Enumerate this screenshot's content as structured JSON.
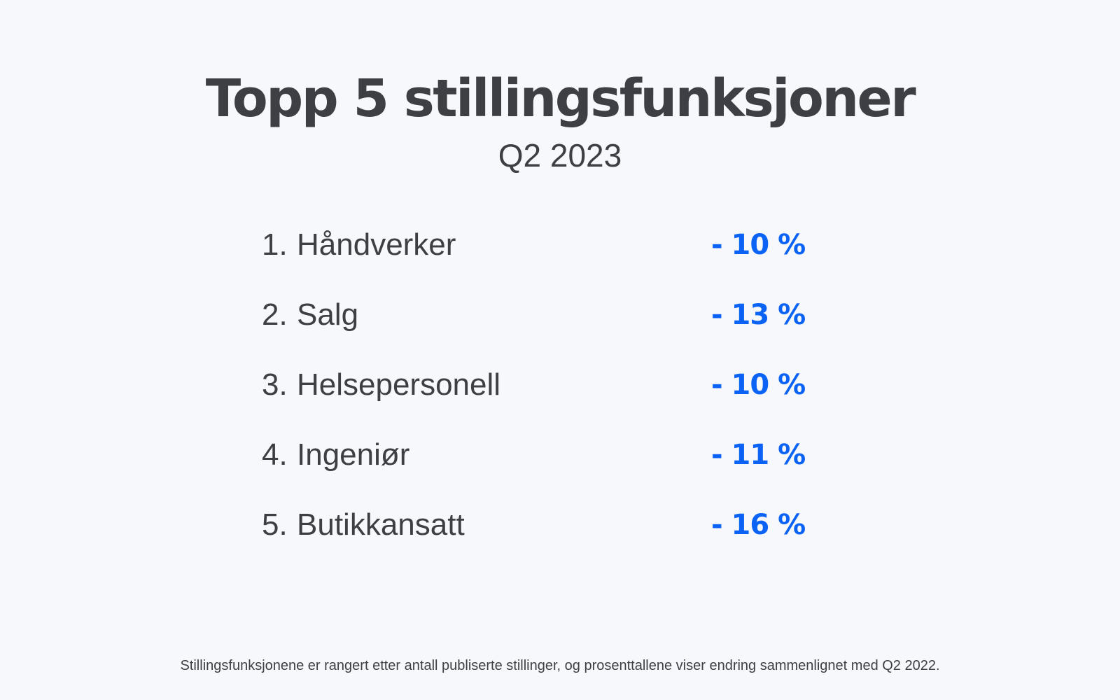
{
  "title": "Topp 5 stillingsfunksjoner",
  "subtitle": "Q2 2023",
  "items": [
    {
      "rank": "1.",
      "label": "Håndverker",
      "change": "- 10 %"
    },
    {
      "rank": "2.",
      "label": "Salg",
      "change": "- 13 %"
    },
    {
      "rank": "3.",
      "label": "Helsepersonell",
      "change": "- 10 %"
    },
    {
      "rank": "4.",
      "label": "Ingeniør",
      "change": "- 11 %"
    },
    {
      "rank": "5.",
      "label": "Butikkansatt",
      "change": "- 16 %"
    }
  ],
  "footnote": "Stillingsfunksjonene er rangert etter antall publiserte stillinger, og prosenttallene viser endring sammenlignet med Q2 2022.",
  "colors": {
    "background": "#f7f8fb",
    "text": "#3d3f45",
    "accent": "#0b63f6"
  }
}
